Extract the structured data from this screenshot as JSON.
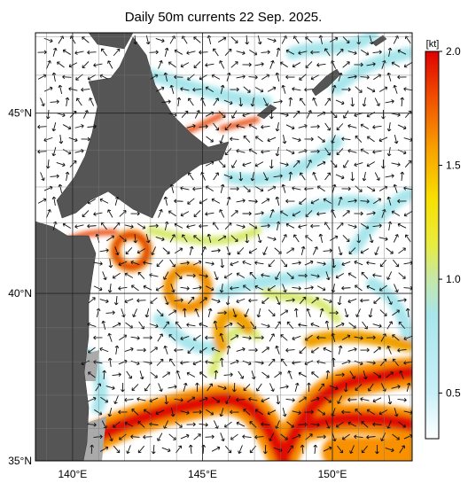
{
  "map": {
    "title": "Daily 50m currents 22 Sep. 2025.",
    "lonlim": [
      138.57,
      153.07
    ],
    "latlim": [
      35,
      47.1
    ],
    "lonticks": [
      {
        "value": 140,
        "label": "140°E"
      },
      {
        "value": 145,
        "label": "145°E"
      },
      {
        "value": 150,
        "label": "150°E"
      }
    ],
    "latticks": [
      {
        "value": 35,
        "label": "35°N"
      },
      {
        "value": 40,
        "label": "40°N"
      },
      {
        "value": 45,
        "label": "45°N"
      }
    ],
    "colorbar": {
      "unit": "[kt]",
      "lim": [
        0.3,
        2.0
      ],
      "ticks": [
        0.5,
        {
          "value": 1.0,
          "label": "1.0"
        },
        1.5,
        {
          "value": 2.0,
          "label": "2.0"
        }
      ]
    }
  }
}
